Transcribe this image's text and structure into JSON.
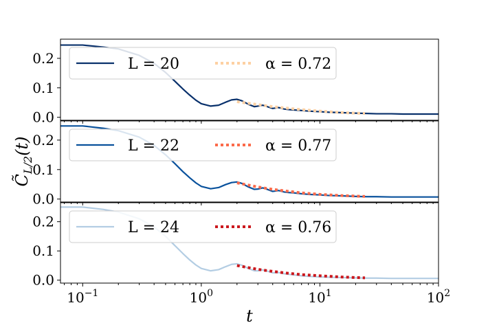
{
  "chart_data": {
    "type": "line",
    "xscale": "log",
    "xlim": [
      0.065,
      100
    ],
    "x_ticks": [
      0.1,
      1,
      10,
      100
    ],
    "x_tick_labels": [
      "10^{-1}",
      "10^{0}",
      "10^{1}",
      "10^{2}"
    ],
    "xlabel": "t",
    "ylabel": "C̃_{L/2}(t)",
    "grid": false,
    "panels": [
      {
        "legend_position": "top",
        "ylim": [
          -0.01,
          0.265
        ],
        "y_ticks": [
          0.0,
          0.1,
          0.2
        ],
        "y_tick_labels": [
          "0.0",
          "0.1",
          "0.2"
        ],
        "series": [
          {
            "name": "L = 20",
            "color": "#08306b",
            "style": "solid",
            "x": [
              0.065,
              0.1,
              0.15,
              0.2,
              0.3,
              0.4,
              0.5,
              0.6,
              0.7,
              0.8,
              0.9,
              1.0,
              1.2,
              1.4,
              1.6,
              1.8,
              2.0,
              2.2,
              2.5,
              2.8,
              3.0,
              3.3,
              3.6,
              4.0,
              4.5,
              5.0,
              5.5,
              6.0,
              7.0,
              8.0,
              10,
              12,
              15,
              20,
              25,
              30,
              40,
              50,
              70,
              100
            ],
            "y": [
              0.245,
              0.245,
              0.238,
              0.232,
              0.21,
              0.183,
              0.152,
              0.122,
              0.096,
              0.075,
              0.058,
              0.046,
              0.038,
              0.041,
              0.051,
              0.059,
              0.061,
              0.056,
              0.044,
              0.036,
              0.038,
              0.041,
              0.036,
              0.03,
              0.033,
              0.028,
              0.026,
              0.025,
              0.023,
              0.021,
              0.019,
              0.017,
              0.016,
              0.014,
              0.013,
              0.012,
              0.012,
              0.011,
              0.011,
              0.011
            ]
          },
          {
            "name": "α = 0.72",
            "color": "#fdd0a2",
            "style": "dotted",
            "x": [
              2,
              3,
              4,
              5,
              7,
              10,
              15,
              20,
              24
            ],
            "y": [
              0.053,
              0.043,
              0.036,
              0.032,
              0.026,
              0.021,
              0.016,
              0.014,
              0.013
            ]
          }
        ]
      },
      {
        "legend_position": "top",
        "ylim": [
          -0.01,
          0.265
        ],
        "y_ticks": [
          0.0,
          0.1,
          0.2
        ],
        "y_tick_labels": [
          "0.0",
          "0.1",
          "0.2"
        ],
        "series": [
          {
            "name": "L = 22",
            "color": "#08519c",
            "style": "solid",
            "x": [
              0.065,
              0.1,
              0.15,
              0.2,
              0.3,
              0.4,
              0.5,
              0.6,
              0.7,
              0.8,
              0.9,
              1.0,
              1.2,
              1.4,
              1.6,
              1.8,
              2.0,
              2.2,
              2.5,
              2.8,
              3.0,
              3.3,
              3.6,
              4.0,
              4.5,
              5.0,
              5.5,
              6.0,
              7.0,
              8.0,
              10,
              12,
              15,
              20,
              25,
              30,
              40,
              50,
              70,
              100
            ],
            "y": [
              0.248,
              0.248,
              0.24,
              0.232,
              0.21,
              0.182,
              0.15,
              0.12,
              0.093,
              0.072,
              0.055,
              0.043,
              0.035,
              0.039,
              0.049,
              0.056,
              0.058,
              0.053,
              0.041,
              0.033,
              0.034,
              0.038,
              0.033,
              0.026,
              0.029,
              0.024,
              0.022,
              0.021,
              0.018,
              0.016,
              0.014,
              0.012,
              0.011,
              0.009,
              0.008,
              0.008,
              0.007,
              0.007,
              0.007,
              0.007
            ]
          },
          {
            "name": "α = 0.77",
            "color": "#fb6a4a",
            "style": "dotted",
            "x": [
              2,
              3,
              4,
              5,
              7,
              10,
              15,
              20,
              24
            ],
            "y": [
              0.055,
              0.041,
              0.033,
              0.028,
              0.021,
              0.016,
              0.012,
              0.01,
              0.009
            ]
          }
        ]
      },
      {
        "legend_position": "top",
        "ylim": [
          -0.01,
          0.265
        ],
        "y_ticks": [
          0.0,
          0.1,
          0.2
        ],
        "y_tick_labels": [
          "0.0",
          "0.1",
          "0.2"
        ],
        "series": [
          {
            "name": "L = 24",
            "color": "#b3cde3",
            "style": "solid",
            "x": [
              0.065,
              0.1,
              0.15,
              0.2,
              0.3,
              0.4,
              0.5,
              0.6,
              0.7,
              0.8,
              0.9,
              1.0,
              1.2,
              1.4,
              1.6,
              1.8,
              2.0,
              2.2,
              2.5,
              2.8,
              3.0,
              3.3,
              3.6,
              4.0,
              4.5,
              5.0,
              5.5,
              6.0,
              7.0,
              8.0,
              10,
              12,
              15,
              20,
              25,
              30,
              40,
              50,
              70,
              100
            ],
            "y": [
              0.25,
              0.25,
              0.242,
              0.233,
              0.21,
              0.182,
              0.15,
              0.118,
              0.091,
              0.069,
              0.052,
              0.04,
              0.032,
              0.036,
              0.046,
              0.054,
              0.056,
              0.051,
              0.04,
              0.032,
              0.032,
              0.035,
              0.031,
              0.025,
              0.026,
              0.022,
              0.02,
              0.018,
              0.015,
              0.013,
              0.011,
              0.01,
              0.009,
              0.008,
              0.007,
              0.007,
              0.006,
              0.006,
              0.006,
              0.006
            ]
          },
          {
            "name": "α = 0.76",
            "color": "#cb181d",
            "style": "dotted",
            "x": [
              2,
              3,
              4,
              5,
              7,
              10,
              15,
              20,
              24
            ],
            "y": [
              0.05,
              0.037,
              0.03,
              0.025,
              0.019,
              0.015,
              0.011,
              0.009,
              0.008
            ]
          }
        ]
      }
    ]
  }
}
